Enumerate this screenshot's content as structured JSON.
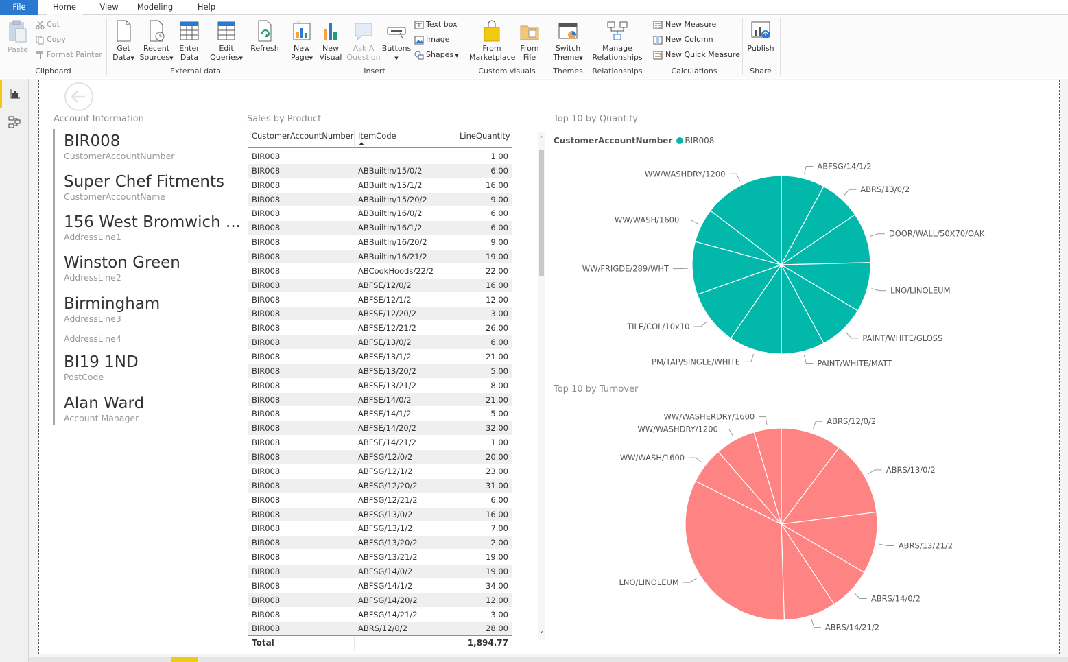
{
  "menu": {
    "tabs": [
      {
        "label": "File"
      },
      {
        "label": "Home"
      },
      {
        "label": "View"
      },
      {
        "label": "Modeling"
      },
      {
        "label": "Help"
      }
    ]
  },
  "ribbon": {
    "clipboard": {
      "paste": "Paste",
      "cut": "Cut",
      "copy": "Copy",
      "format_painter": "Format Painter",
      "label": "Clipboard"
    },
    "external_data": {
      "get_data": [
        "Get",
        "Data"
      ],
      "recent_sources": [
        "Recent",
        "Sources"
      ],
      "enter_data": [
        "Enter",
        "Data"
      ],
      "edit_queries": [
        "Edit",
        "Queries"
      ],
      "refresh": "Refresh",
      "label": "External data"
    },
    "insert": {
      "new_page": [
        "New",
        "Page"
      ],
      "new_visual": [
        "New",
        "Visual"
      ],
      "ask_question": [
        "Ask A",
        "Question"
      ],
      "buttons": "Buttons",
      "text_box": "Text box",
      "image": "Image",
      "shapes": "Shapes",
      "label": "Insert"
    },
    "custom_visuals": {
      "from_marketplace": [
        "From",
        "Marketplace"
      ],
      "from_file": [
        "From",
        "File"
      ],
      "label": "Custom visuals"
    },
    "themes": {
      "switch_theme": [
        "Switch",
        "Theme"
      ],
      "label": "Themes"
    },
    "relationships": {
      "manage": [
        "Manage",
        "Relationships"
      ],
      "label": "Relationships"
    },
    "calculations": {
      "new_measure": "New Measure",
      "new_column": "New Column",
      "new_quick_measure": "New Quick Measure",
      "label": "Calculations"
    },
    "share": {
      "publish": "Publish",
      "label": "Share"
    }
  },
  "account": {
    "title": "Account Information",
    "fields": [
      {
        "value": "BIR008",
        "label": "CustomerAccountNumber"
      },
      {
        "value": "Super Chef Fitments",
        "label": "CustomerAccountName"
      },
      {
        "value": "156 West Bromwich ...",
        "label": "AddressLine1"
      },
      {
        "value": "Winston Green",
        "label": "AddressLine2"
      },
      {
        "value": "Birmingham",
        "label": "AddressLine3"
      },
      {
        "value": "",
        "label": "AddressLine4"
      },
      {
        "value": "BI19 1ND",
        "label": "PostCode"
      },
      {
        "value": "Alan Ward",
        "label": "Account Manager"
      }
    ]
  },
  "sales_table": {
    "title": "Sales by Product",
    "columns": [
      "CustomerAccountNumber",
      "ItemCode",
      "LineQuantity"
    ],
    "rows": [
      [
        "BIR008",
        "",
        "1.00"
      ],
      [
        "BIR008",
        "ABBuiltIn/15/0/2",
        "6.00"
      ],
      [
        "BIR008",
        "ABBuiltIn/15/1/2",
        "16.00"
      ],
      [
        "BIR008",
        "ABBuiltIn/15/20/2",
        "9.00"
      ],
      [
        "BIR008",
        "ABBuiltIn/16/0/2",
        "6.00"
      ],
      [
        "BIR008",
        "ABBuiltIn/16/1/2",
        "6.00"
      ],
      [
        "BIR008",
        "ABBuiltIn/16/20/2",
        "9.00"
      ],
      [
        "BIR008",
        "ABBuiltIn/16/21/2",
        "19.00"
      ],
      [
        "BIR008",
        "ABCookHoods/22/2",
        "22.00"
      ],
      [
        "BIR008",
        "ABFSE/12/0/2",
        "16.00"
      ],
      [
        "BIR008",
        "ABFSE/12/1/2",
        "12.00"
      ],
      [
        "BIR008",
        "ABFSE/12/20/2",
        "3.00"
      ],
      [
        "BIR008",
        "ABFSE/12/21/2",
        "26.00"
      ],
      [
        "BIR008",
        "ABFSE/13/0/2",
        "6.00"
      ],
      [
        "BIR008",
        "ABFSE/13/1/2",
        "21.00"
      ],
      [
        "BIR008",
        "ABFSE/13/20/2",
        "5.00"
      ],
      [
        "BIR008",
        "ABFSE/13/21/2",
        "8.00"
      ],
      [
        "BIR008",
        "ABFSE/14/0/2",
        "21.00"
      ],
      [
        "BIR008",
        "ABFSE/14/1/2",
        "5.00"
      ],
      [
        "BIR008",
        "ABFSE/14/20/2",
        "32.00"
      ],
      [
        "BIR008",
        "ABFSE/14/21/2",
        "1.00"
      ],
      [
        "BIR008",
        "ABFSG/12/0/2",
        "20.00"
      ],
      [
        "BIR008",
        "ABFSG/12/1/2",
        "23.00"
      ],
      [
        "BIR008",
        "ABFSG/12/20/2",
        "31.00"
      ],
      [
        "BIR008",
        "ABFSG/12/21/2",
        "6.00"
      ],
      [
        "BIR008",
        "ABFSG/13/0/2",
        "16.00"
      ],
      [
        "BIR008",
        "ABFSG/13/1/2",
        "7.00"
      ],
      [
        "BIR008",
        "ABFSG/13/20/2",
        "2.00"
      ],
      [
        "BIR008",
        "ABFSG/13/21/2",
        "19.00"
      ],
      [
        "BIR008",
        "ABFSG/14/0/2",
        "19.00"
      ],
      [
        "BIR008",
        "ABFSG/14/1/2",
        "34.00"
      ],
      [
        "BIR008",
        "ABFSG/14/20/2",
        "12.00"
      ],
      [
        "BIR008",
        "ABFSG/14/21/2",
        "3.00"
      ],
      [
        "BIR008",
        "ABRS/12/0/2",
        "28.00"
      ]
    ],
    "total_label": "Total",
    "total_value": "1,894.77"
  },
  "chart_data": [
    {
      "type": "pie",
      "title": "Top 10 by Quantity",
      "legend_title": "CustomerAccountNumber",
      "legend_entry": "BIR008",
      "legend_position": "top-left",
      "color": "#01b8aa",
      "categories": [
        "ABFSG/14/1/2",
        "ABRS/13/0/2",
        "DOOR/WALL/50X70/OAK",
        "LNO/LINOLEUM",
        "PAINT/WHITE/GLOSS",
        "PAINT/WHITE/MATT",
        "PM/TAP/SINGLE/WHITE",
        "TILE/COL/10x10",
        "WW/FRIGDE/289/WHT",
        "WW/WASH/1600",
        "WW/WASHDRY/1200"
      ],
      "values": [
        7.9,
        7.6,
        9.1,
        9.0,
        8.5,
        7.9,
        9.6,
        10.0,
        9.6,
        6.2,
        14.6
      ]
    },
    {
      "type": "pie",
      "title": "Top 10 by Turnover",
      "color": "#fd8483",
      "categories": [
        "ABRS/12/0/2",
        "ABRS/13/0/2",
        "ABRS/13/21/2",
        "ABRS/14/0/2",
        "ABRS/14/21/2",
        "LNO/LINOLEUM",
        "WW/WASH/1600",
        "WW/WASHDRY/1200",
        "WW/WASHERDRY/1600"
      ],
      "values": [
        10.3,
        12.7,
        10.4,
        7.3,
        8.8,
        32.9,
        6.2,
        6.8,
        4.6
      ]
    }
  ]
}
